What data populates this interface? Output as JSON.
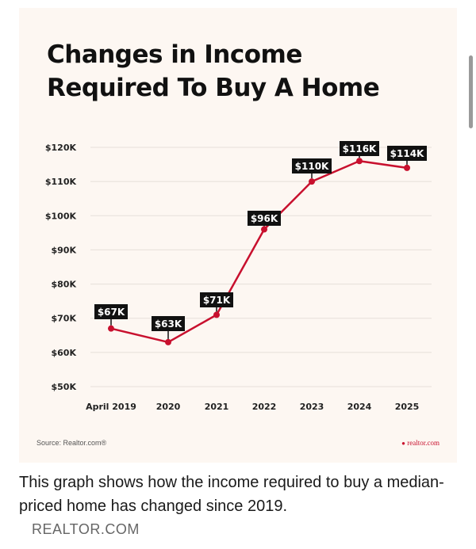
{
  "chart_data": {
    "type": "line",
    "title": "Changes in Income Required To Buy A Home",
    "categories": [
      "April 2019",
      "2020",
      "2021",
      "2022",
      "2023",
      "2024",
      "2025"
    ],
    "values": [
      67,
      63,
      71,
      96,
      110,
      116,
      114
    ],
    "data_labels": [
      "$67K",
      "$63K",
      "$71K",
      "$96K",
      "$110K",
      "$116K",
      "$114K"
    ],
    "y_ticks": [
      50,
      60,
      70,
      80,
      90,
      100,
      110,
      120
    ],
    "y_tick_labels": [
      "$50K",
      "$60K",
      "$70K",
      "$80K",
      "$90K",
      "$100K",
      "$110K",
      "$120K"
    ],
    "ylim": [
      50,
      120
    ],
    "grid": true,
    "line_color": "#c8102e",
    "label_bg": "#111111"
  },
  "source": "Source: Realtor.com®",
  "brand": "realtor.com",
  "caption": "This graph shows how the income required to buy a median-priced home has changed since 2019.",
  "site": "REALTOR.COM"
}
